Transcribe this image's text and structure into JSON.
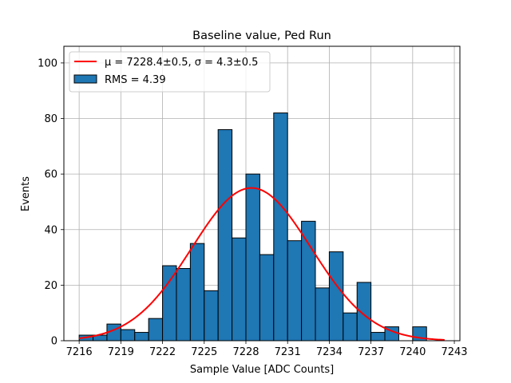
{
  "chart_data": {
    "type": "bar",
    "title": "Baseline value, Ped Run",
    "xlabel": "Sample Value [ADC Counts]",
    "ylabel": "Events",
    "xlim": [
      7214.9,
      7243.4
    ],
    "ylim": [
      0,
      106
    ],
    "grid": true,
    "bin_width": 1,
    "bins": [
      {
        "start": 7216,
        "count": 2
      },
      {
        "start": 7217,
        "count": 2
      },
      {
        "start": 7218,
        "count": 6
      },
      {
        "start": 7219,
        "count": 4
      },
      {
        "start": 7220,
        "count": 3
      },
      {
        "start": 7221,
        "count": 8
      },
      {
        "start": 7222,
        "count": 27
      },
      {
        "start": 7223,
        "count": 26
      },
      {
        "start": 7224,
        "count": 35
      },
      {
        "start": 7225,
        "count": 18
      },
      {
        "start": 7226,
        "count": 76
      },
      {
        "start": 7227,
        "count": 37
      },
      {
        "start": 7228,
        "count": 60
      },
      {
        "start": 7229,
        "count": 31
      },
      {
        "start": 7230,
        "count": 82
      },
      {
        "start": 7231,
        "count": 36
      },
      {
        "start": 7232,
        "count": 43
      },
      {
        "start": 7233,
        "count": 19
      },
      {
        "start": 7234,
        "count": 32
      },
      {
        "start": 7235,
        "count": 10
      },
      {
        "start": 7236,
        "count": 21
      },
      {
        "start": 7237,
        "count": 3
      },
      {
        "start": 7238,
        "count": 5
      },
      {
        "start": 7240,
        "count": 5
      }
    ],
    "fit": {
      "type": "gaussian",
      "mu": 7228.4,
      "sigma": 4.3,
      "amplitude": 55,
      "x_range": [
        7216,
        7242.3
      ]
    },
    "x_ticks": [
      "7216",
      "7219",
      "7222",
      "7225",
      "7228",
      "7231",
      "7234",
      "7237",
      "7240",
      "7243"
    ],
    "y_ticks": [
      "0",
      "20",
      "40",
      "60",
      "80",
      "100"
    ],
    "legend": {
      "position": "top-left",
      "fit_prefix": "μ = 7228.4±0.5, ",
      "fit_suffix": "σ = 4.3±0.5",
      "hist_label": "RMS = 4.39"
    },
    "colors": {
      "bar": "#1f77b4",
      "bar_edge": "#000000",
      "fit": "#ff0000",
      "grid": "#b0b0b0"
    }
  }
}
